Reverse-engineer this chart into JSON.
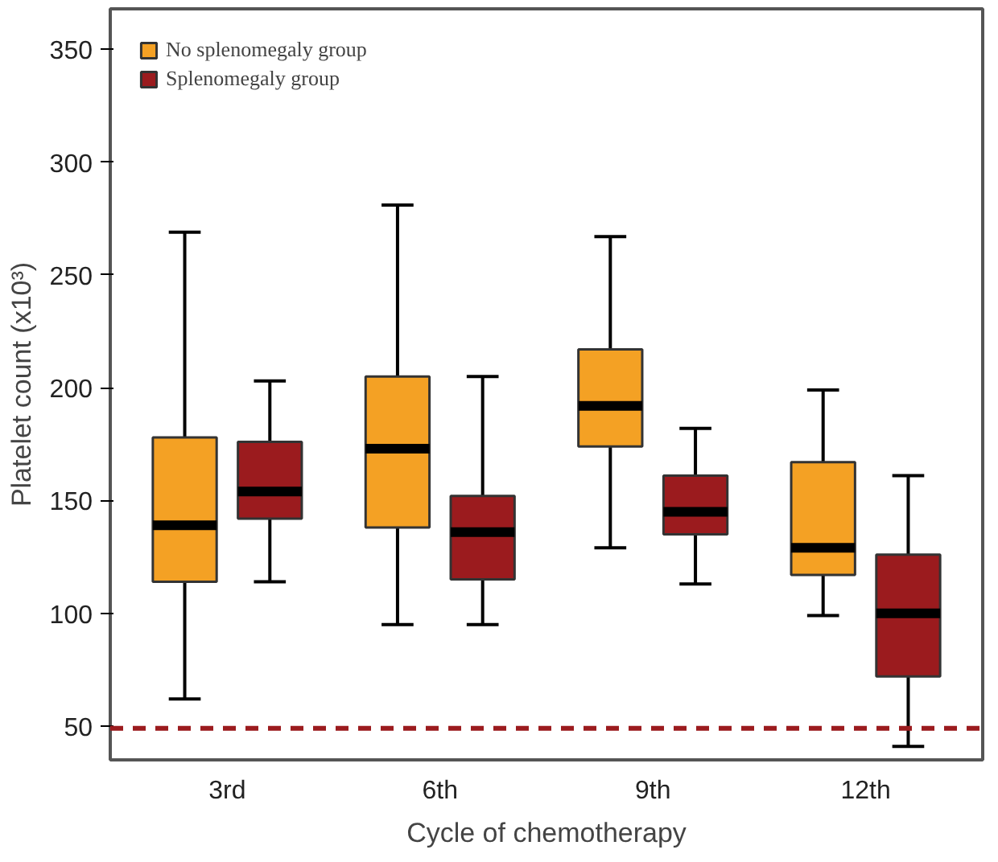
{
  "chart_data": {
    "type": "box",
    "xlabel": "Cycle of chemotherapy",
    "ylabel": "Platelet count (x10³)",
    "categories": [
      "3rd",
      "6th",
      "9th",
      "12th"
    ],
    "ylim": [
      35,
      368
    ],
    "yticks": [
      50,
      100,
      150,
      200,
      250,
      300,
      350
    ],
    "legend": "top left",
    "series": [
      {
        "name": "No splenomegaly group",
        "color": "#f4a124",
        "boxes": [
          {
            "low": 62,
            "q1": 114,
            "median": 139,
            "q3": 178,
            "high": 269
          },
          {
            "low": 95,
            "q1": 138,
            "median": 173,
            "q3": 205,
            "high": 281
          },
          {
            "low": 129,
            "q1": 174,
            "median": 192,
            "q3": 217,
            "high": 267
          },
          {
            "low": 99,
            "q1": 117,
            "median": 129,
            "q3": 167,
            "high": 199
          }
        ]
      },
      {
        "name": "Splenomegaly group",
        "color": "#9b1b1e",
        "boxes": [
          {
            "low": 114,
            "q1": 142,
            "median": 154,
            "q3": 176,
            "high": 203
          },
          {
            "low": 95,
            "q1": 115,
            "median": 136,
            "q3": 152,
            "high": 205
          },
          {
            "low": 113,
            "q1": 135,
            "median": 145,
            "q3": 161,
            "high": 182
          },
          {
            "low": 41,
            "q1": 72,
            "median": 100,
            "q3": 126,
            "high": 161
          }
        ]
      }
    ],
    "ref_lines": [
      {
        "axis": "y",
        "value": 49,
        "color": "#9b1b1e",
        "line_style": "dashed"
      }
    ]
  }
}
